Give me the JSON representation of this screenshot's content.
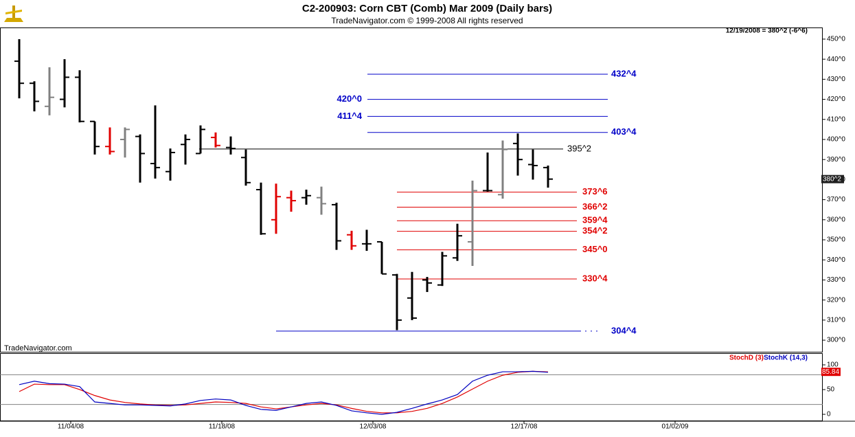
{
  "chart_data": [
    {
      "type": "ohlc",
      "title": "C2-200903:  Corn CBT (Comb) Mar 2009  (Daily bars)",
      "subtitle": "TradeNavigator.com © 1999-2008 All rights reserved",
      "header": "12/19/2008 = 380^2 (-6^6)",
      "watermark": "TradeNavigator.com",
      "open": [
        439,
        428,
        416.5,
        420,
        431,
        409,
        396.5,
        400,
        401.5,
        388,
        384,
        397.5,
        393,
        401,
        396,
        391,
        375,
        360,
        371,
        371,
        371,
        367.5,
        352.5,
        348,
        349,
        332.5,
        321,
        330,
        327.5,
        341,
        349,
        374.5,
        372.5,
        398,
        387.5,
        386
      ],
      "high": [
        450,
        429,
        436,
        440,
        434.5,
        409,
        406,
        406,
        402.5,
        417,
        395.5,
        402.5,
        407,
        403.5,
        401.5,
        395,
        378.5,
        378,
        374.5,
        375,
        376.5,
        368.5,
        354.5,
        355,
        349,
        333,
        334,
        331.5,
        344,
        358,
        379.5,
        393.5,
        399.5,
        403,
        395,
        387
      ],
      "low": [
        420.5,
        414,
        412,
        416,
        408.5,
        392.5,
        392.5,
        391,
        378.5,
        380.5,
        379.5,
        387.5,
        393,
        396,
        392.5,
        377,
        352.5,
        353,
        364,
        367.5,
        362.5,
        345,
        345,
        344.5,
        333,
        305,
        310,
        324,
        327,
        339.5,
        337,
        374,
        370.5,
        382,
        380,
        376
      ],
      "close": [
        428,
        419,
        421,
        431,
        409,
        396.5,
        394,
        405,
        393,
        386,
        393.5,
        400,
        405,
        397,
        395.5,
        378.5,
        353,
        371.5,
        369.5,
        372,
        368,
        349.5,
        347,
        348,
        333,
        310,
        311,
        328.5,
        342,
        352,
        374.5,
        374.5,
        395,
        390,
        387,
        380.25
      ],
      "bar_colors": [
        "#000000",
        "#000000",
        "#808080",
        "#000000",
        "#000000",
        "#000000",
        "#e00000",
        "#808080",
        "#000000",
        "#000000",
        "#000000",
        "#000000",
        "#000000",
        "#e00000",
        "#000000",
        "#000000",
        "#000000",
        "#e00000",
        "#e00000",
        "#000000",
        "#808080",
        "#000000",
        "#e00000",
        "#000000",
        "#000000",
        "#000000",
        "#000000",
        "#000000",
        "#000000",
        "#000000",
        "#808080",
        "#000000",
        "#808080",
        "#000000",
        "#000000",
        "#000000"
      ],
      "xlim": [
        -1,
        53
      ],
      "xticks": [
        {
          "value": 3,
          "label": "11/04/08"
        },
        {
          "value": 13,
          "label": "11/18/08"
        },
        {
          "value": 23,
          "label": "12/03/08"
        },
        {
          "value": 33,
          "label": "12/17/08"
        },
        {
          "value": 43,
          "label": "01/02/09"
        }
      ],
      "ylim": [
        294.2,
        455.8
      ],
      "yticks": [
        {
          "value": 300,
          "label": "300^0"
        },
        {
          "value": 310,
          "label": "310^0"
        },
        {
          "value": 320,
          "label": "320^0"
        },
        {
          "value": 330,
          "label": "330^0"
        },
        {
          "value": 340,
          "label": "340^0"
        },
        {
          "value": 350,
          "label": "350^0"
        },
        {
          "value": 360,
          "label": "360^0"
        },
        {
          "value": 370,
          "label": "370^0"
        },
        {
          "value": 380,
          "label": "380^0"
        },
        {
          "value": 390,
          "label": "390^0"
        },
        {
          "value": 400,
          "label": "400^0"
        },
        {
          "value": 410,
          "label": "410^0"
        },
        {
          "value": 420,
          "label": "420^0"
        },
        {
          "value": 430,
          "label": "430^0"
        },
        {
          "value": 440,
          "label": "440^0"
        },
        {
          "value": 450,
          "label": "450^0"
        }
      ],
      "last_price": {
        "value": 380.25,
        "label": "380^2"
      },
      "levels": [
        {
          "value": 432.5,
          "label": "432^4",
          "color": "#0000c8"
        },
        {
          "value": 420,
          "label": "420^0",
          "color": "#0000c8"
        },
        {
          "value": 411.5,
          "label": "411^4",
          "color": "#0000c8"
        },
        {
          "value": 403.5,
          "label": "403^4",
          "color": "#0000c8"
        },
        {
          "value": 395.25,
          "label": "395^2",
          "color": "#000000"
        },
        {
          "value": 373.75,
          "label": "373^6",
          "color": "#e00000"
        },
        {
          "value": 366.25,
          "label": "366^2",
          "color": "#e00000"
        },
        {
          "value": 359.5,
          "label": "359^4",
          "color": "#e00000"
        },
        {
          "value": 354.25,
          "label": "354^2",
          "color": "#e00000"
        },
        {
          "value": 345,
          "label": "345^0",
          "color": "#e00000"
        },
        {
          "value": 330.5,
          "label": "330^4",
          "color": "#e00000"
        },
        {
          "value": 304.5,
          "label": "304^4",
          "color": "#0000c8"
        }
      ]
    },
    {
      "type": "line",
      "series": [
        {
          "name": "StochD (3)",
          "color": "#e00000",
          "values": [
            46,
            61,
            60,
            60,
            50,
            38,
            29,
            24,
            21,
            19,
            18,
            19,
            22,
            25,
            24,
            22,
            15,
            11,
            15,
            19,
            22,
            19,
            12,
            6,
            3,
            3,
            6,
            12,
            22,
            35,
            51,
            67,
            79,
            85,
            87,
            85.84
          ]
        },
        {
          "name": "StochK (14,3)",
          "color": "#0000c0",
          "values": [
            60,
            67,
            62,
            61,
            56,
            25,
            22,
            19,
            19,
            18,
            17,
            21,
            28,
            31,
            29,
            18,
            10,
            8,
            15,
            22,
            25,
            18,
            7,
            3,
            0,
            4,
            12,
            21,
            29,
            40,
            67,
            79,
            86,
            86,
            87,
            85
          ]
        }
      ],
      "ylim": [
        -13.9,
        123.6
      ],
      "yticks": [
        0,
        50,
        100
      ],
      "ref_lines": [
        20,
        80
      ]
    }
  ]
}
